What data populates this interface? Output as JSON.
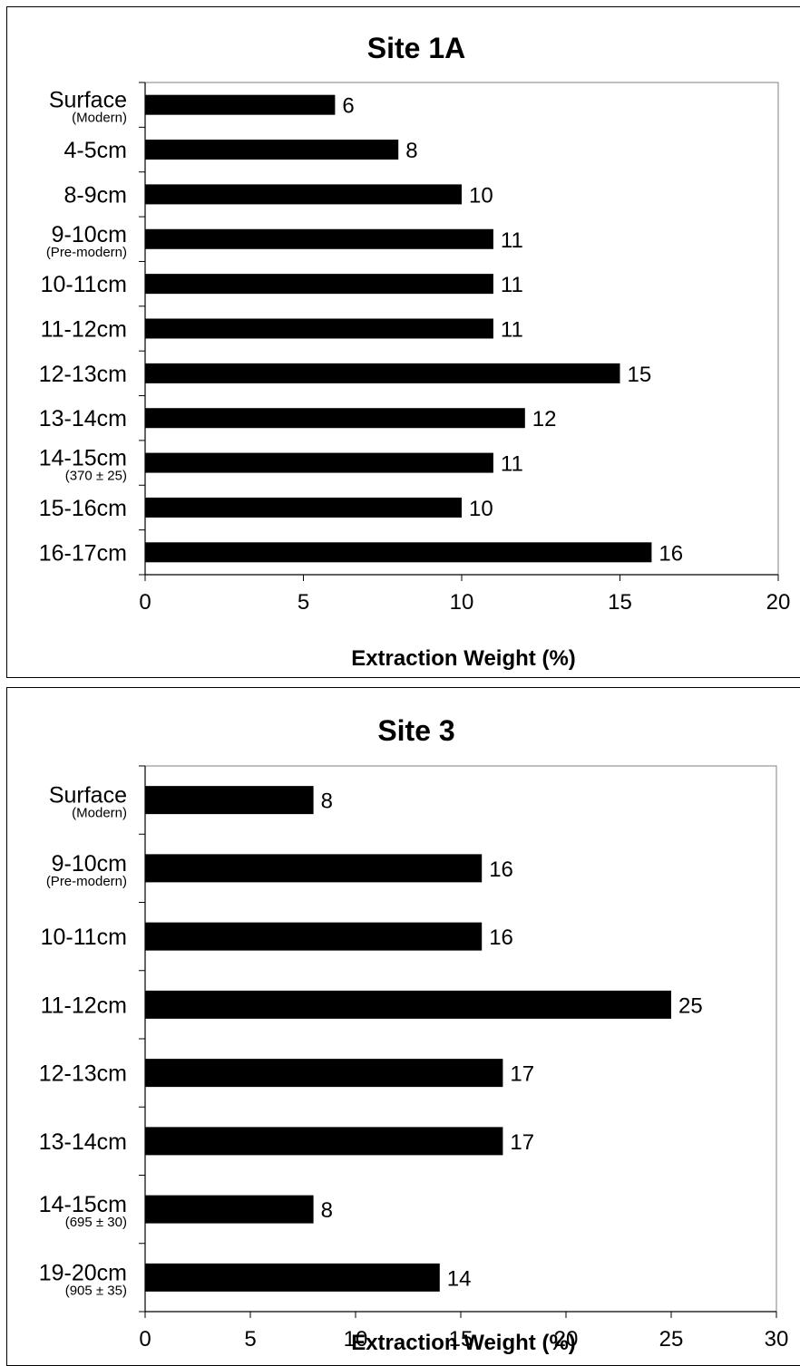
{
  "chart_data": [
    {
      "type": "bar",
      "orientation": "horizontal",
      "title": "Site 1A",
      "xlabel": "Extraction Weight (%)",
      "ylabel": "",
      "xlim": [
        0,
        20
      ],
      "xticks": [
        0,
        5,
        10,
        15,
        20
      ],
      "grid": false,
      "bar_color": "#000000",
      "categories": [
        {
          "label": "Surface",
          "sublabel": "(Modern)"
        },
        {
          "label": "4-5cm",
          "sublabel": ""
        },
        {
          "label": "8-9cm",
          "sublabel": ""
        },
        {
          "label": "9-10cm",
          "sublabel": "(Pre-modern)"
        },
        {
          "label": "10-11cm",
          "sublabel": ""
        },
        {
          "label": "11-12cm",
          "sublabel": ""
        },
        {
          "label": "12-13cm",
          "sublabel": ""
        },
        {
          "label": "13-14cm",
          "sublabel": ""
        },
        {
          "label": "14-15cm",
          "sublabel": "(370 ± 25)"
        },
        {
          "label": "15-16cm",
          "sublabel": ""
        },
        {
          "label": "16-17cm",
          "sublabel": ""
        }
      ],
      "values": [
        6,
        8,
        10,
        11,
        11,
        11,
        15,
        12,
        11,
        10,
        16
      ],
      "data_labels": [
        "6",
        "8",
        "10",
        "11",
        "11",
        "11",
        "15",
        "12",
        "11",
        "10",
        "16"
      ]
    },
    {
      "type": "bar",
      "orientation": "horizontal",
      "title": "Site 3",
      "xlabel": "Extraction Weight (%)",
      "ylabel": "",
      "xlim": [
        0,
        30
      ],
      "xticks": [
        0,
        5,
        10,
        15,
        20,
        25,
        30
      ],
      "grid": false,
      "bar_color": "#000000",
      "categories": [
        {
          "label": "Surface",
          "sublabel": "(Modern)"
        },
        {
          "label": "9-10cm",
          "sublabel": "(Pre-modern)"
        },
        {
          "label": "10-11cm",
          "sublabel": ""
        },
        {
          "label": "11-12cm",
          "sublabel": ""
        },
        {
          "label": "12-13cm",
          "sublabel": ""
        },
        {
          "label": "13-14cm",
          "sublabel": ""
        },
        {
          "label": "14-15cm",
          "sublabel": "(695 ± 30)"
        },
        {
          "label": "19-20cm",
          "sublabel": "(905 ± 35)"
        }
      ],
      "values": [
        8,
        16,
        16,
        25,
        17,
        17,
        8,
        14
      ],
      "data_labels": [
        "8",
        "16",
        "16",
        "25",
        "17",
        "17",
        "8",
        "14"
      ]
    }
  ]
}
